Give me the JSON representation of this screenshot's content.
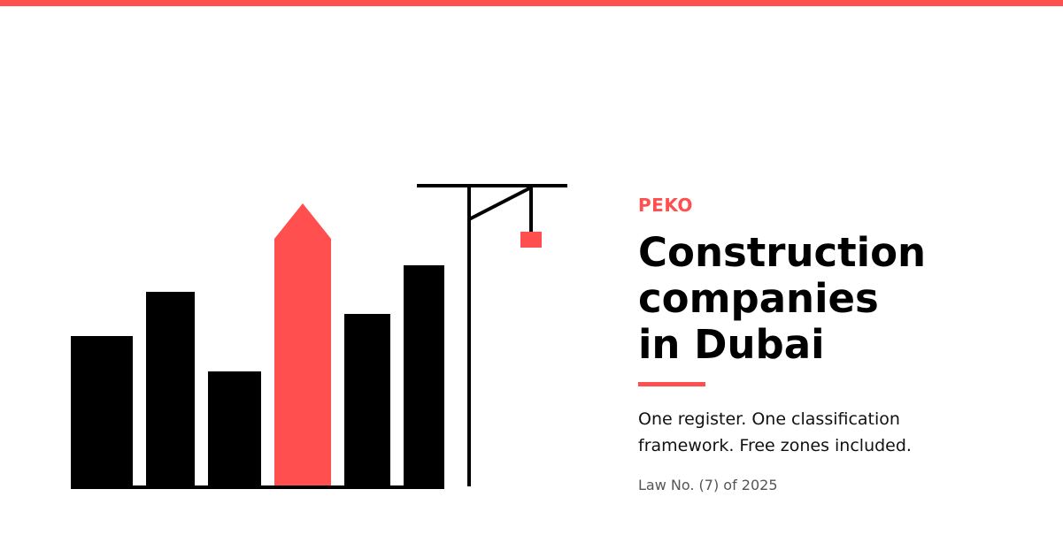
{
  "brand": "PEKO",
  "title_lines": [
    "Construction",
    "companies",
    "in Dubai"
  ],
  "subtitle_lines": [
    "One register. One classification",
    "framework. Free zones included."
  ],
  "law": "Law No. (7) of 2025",
  "colors": {
    "accent": "#ff4f4f",
    "ink": "#000000",
    "background": "#ffffff"
  },
  "icons": [
    "skyline-illustration",
    "crane-illustration"
  ]
}
